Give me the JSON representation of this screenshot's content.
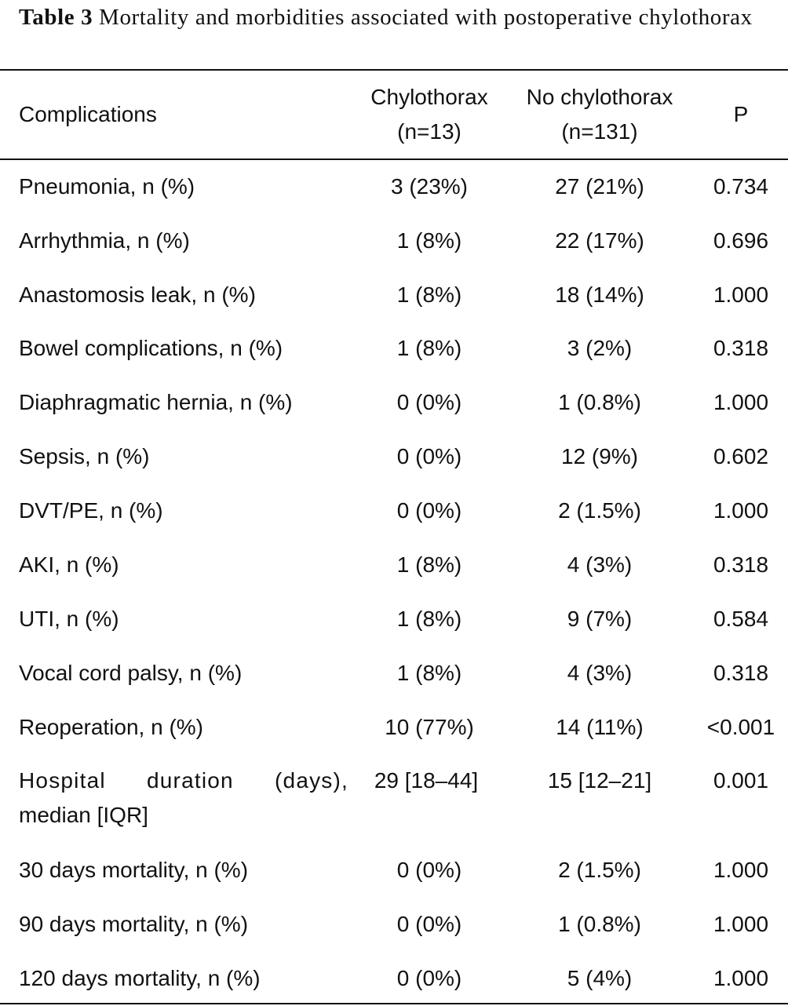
{
  "caption": {
    "label": "Table 3",
    "text": " Mortality and morbidities associated with postoperative chylothorax"
  },
  "header": {
    "col_name": "Complications",
    "col_a_line1": "Chylothorax",
    "col_a_line2": "(n=13)",
    "col_b_line1": "No chylothorax",
    "col_b_line2": "(n=131)",
    "col_p": "P"
  },
  "rows": [
    {
      "name": "Pneumonia, n (%)",
      "a": "3 (23%)",
      "b": "27 (21%)",
      "p": "0.734"
    },
    {
      "name": "Arrhythmia, n (%)",
      "a": "1 (8%)",
      "b": "22 (17%)",
      "p": "0.696"
    },
    {
      "name": "Anastomosis leak, n (%)",
      "a": "1 (8%)",
      "b": "18 (14%)",
      "p": "1.000"
    },
    {
      "name": "Bowel complications, n (%)",
      "a": "1 (8%)",
      "b": "3 (2%)",
      "p": "0.318"
    },
    {
      "name": "Diaphragmatic hernia, n (%)",
      "a": "0 (0%)",
      "b": "1 (0.8%)",
      "p": "1.000"
    },
    {
      "name": "Sepsis, n (%)",
      "a": "0 (0%)",
      "b": "12 (9%)",
      "p": "0.602"
    },
    {
      "name": "DVT/PE, n (%)",
      "a": "0 (0%)",
      "b": "2 (1.5%)",
      "p": "1.000"
    },
    {
      "name": "AKI, n (%)",
      "a": "1 (8%)",
      "b": "4 (3%)",
      "p": "0.318"
    },
    {
      "name": "UTI, n (%)",
      "a": "1 (8%)",
      "b": "9 (7%)",
      "p": "0.584"
    },
    {
      "name": "Vocal cord palsy, n (%)",
      "a": "1 (8%)",
      "b": "4 (3%)",
      "p": "0.318"
    },
    {
      "name": "Reoperation, n (%)",
      "a": "10 (77%)",
      "b": "14 (11%)",
      "p": "<0.001"
    },
    {
      "name_line1": "Hospital duration (days),",
      "name_line2": "median [IQR]",
      "a": "29 [18–44]",
      "b": "15 [12–21]",
      "p": "0.001"
    },
    {
      "name": "30 days mortality, n (%)",
      "a": "0 (0%)",
      "b": "2 (1.5%)",
      "p": "1.000"
    },
    {
      "name": "90 days mortality, n (%)",
      "a": "0 (0%)",
      "b": "1 (0.8%)",
      "p": "1.000"
    },
    {
      "name": "120 days mortality, n (%)",
      "a": "0 (0%)",
      "b": "5 (4%)",
      "p": "1.000"
    }
  ]
}
